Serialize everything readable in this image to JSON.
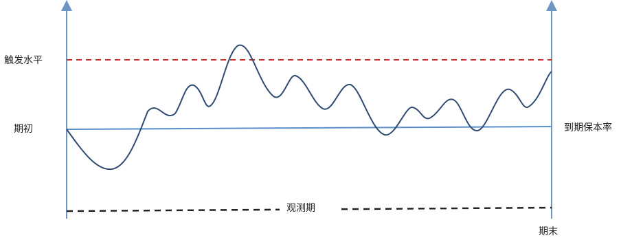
{
  "labels": {
    "trigger_level": "触发水平",
    "period_start": "期初",
    "protected_rate": "到期保本率",
    "observation_period": "观测期",
    "period_end": "期末"
  },
  "colors": {
    "axis": "#6f96c3",
    "trigger_line": "#c62828",
    "baseline": "#5b8fc9",
    "price_path": "#2e4a72",
    "observation_line": "#222222",
    "text": "#222222"
  }
}
